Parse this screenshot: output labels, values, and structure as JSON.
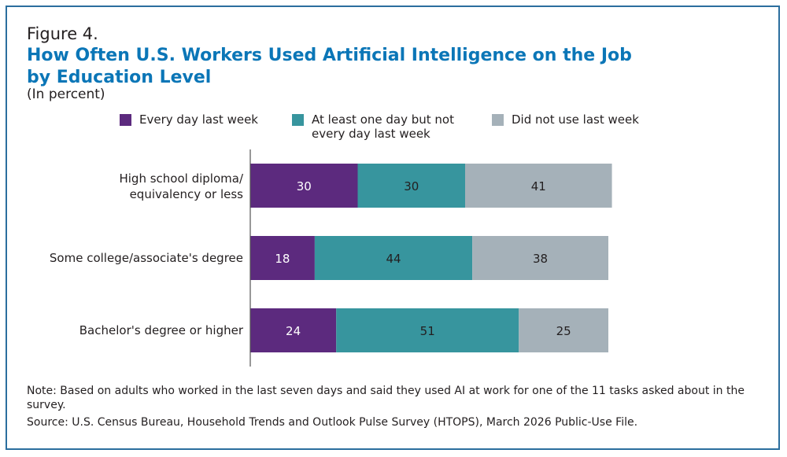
{
  "figure_label": "Figure 4.",
  "title": "How Often U.S. Workers Used Artificial Intelligence on the Job by Education Level",
  "subtitle": "(In percent)",
  "note": "Note: Based on adults who worked in the last seven days and said they used AI at work for one of the 11 tasks asked about in the survey.",
  "source": "Source: U.S. Census Bureau, Household Trends and Outlook Pulse Survey (HTOPS), March 2026 Public-Use File.",
  "colors": {
    "border": "#2b6e9e",
    "title": "#0b76b7",
    "every_day": "#5c2a7e",
    "some_days": "#37959e",
    "did_not_use": "#a5b1b9"
  },
  "chart_data": {
    "type": "bar",
    "orientation": "horizontal",
    "stacked": true,
    "categories": [
      "High school diploma/ equivalency or less",
      "Some college/associate's degree",
      "Bachelor's degree or higher"
    ],
    "series": [
      {
        "name": "Every day last week",
        "color": "#5c2a7e",
        "values": [
          30,
          18,
          24
        ]
      },
      {
        "name": "At least one day but not every day last week",
        "color": "#37959e",
        "values": [
          30,
          44,
          51
        ]
      },
      {
        "name": "Did not use last week",
        "color": "#a5b1b9",
        "values": [
          41,
          38,
          25
        ]
      }
    ],
    "xlim": [
      0,
      150
    ],
    "legend": "top",
    "grid": false
  }
}
